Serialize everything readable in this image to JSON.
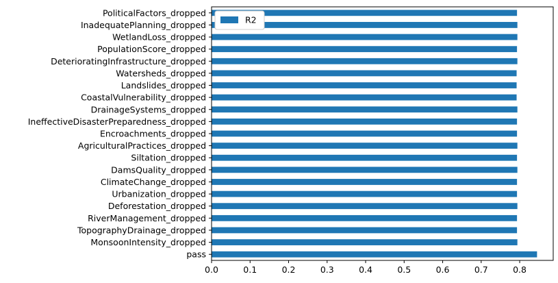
{
  "chart_data": {
    "type": "bar",
    "orientation": "horizontal",
    "categories": [
      "pass",
      "MonsoonIntensity_dropped",
      "TopographyDrainage_dropped",
      "RiverManagement_dropped",
      "Deforestation_dropped",
      "Urbanization_dropped",
      "ClimateChange_dropped",
      "DamsQuality_dropped",
      "Siltation_dropped",
      "AgriculturalPractices_dropped",
      "Encroachments_dropped",
      "IneffectiveDisasterPreparedness_dropped",
      "DrainageSystems_dropped",
      "CoastalVulnerability_dropped",
      "Landslides_dropped",
      "Watersheds_dropped",
      "DeterioratingInfrastructure_dropped",
      "PopulationScore_dropped",
      "WetlandLoss_dropped",
      "InadequatePlanning_dropped",
      "PoliticalFactors_dropped"
    ],
    "series": [
      {
        "name": "R2",
        "color": "#1f77b4",
        "values": [
          0.845,
          0.794,
          0.793,
          0.793,
          0.794,
          0.793,
          0.793,
          0.794,
          0.793,
          0.794,
          0.793,
          0.793,
          0.794,
          0.792,
          0.792,
          0.792,
          0.794,
          0.793,
          0.794,
          0.794,
          0.793
        ]
      }
    ],
    "xlim": [
      0,
      0.887
    ],
    "xticks": [
      "0.0",
      "0.1",
      "0.2",
      "0.3",
      "0.4",
      "0.5",
      "0.6",
      "0.7",
      "0.8"
    ],
    "title": "",
    "xlabel": "",
    "ylabel": "",
    "grid": false,
    "legend": {
      "position": "upper-left"
    }
  }
}
